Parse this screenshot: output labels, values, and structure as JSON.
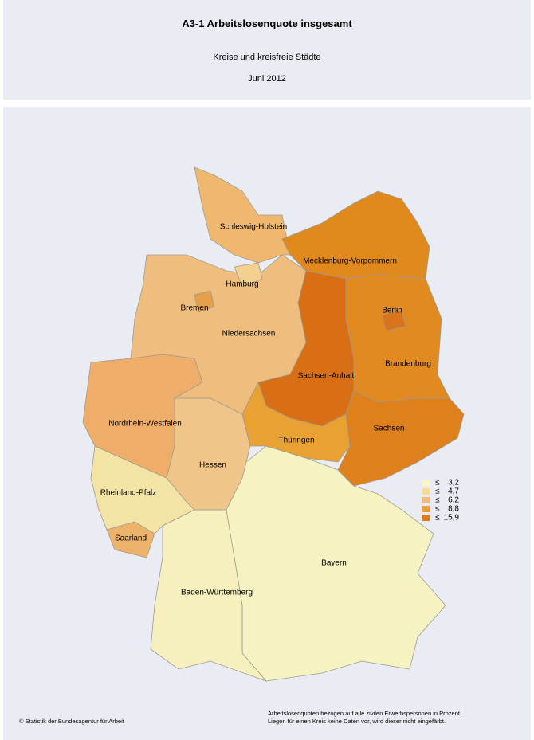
{
  "header": {
    "title": "A3-1 Arbeitslosenquote insgesamt",
    "subtitle": "Kreise und kreisfreie Städte",
    "date": "Juni 2012"
  },
  "map": {
    "states": [
      {
        "label": "Bayern",
        "color": "#f6f3c2"
      },
      {
        "label": "Baden-Württemberg",
        "color": "#f5f0bd"
      },
      {
        "label": "Saarland",
        "color": "#eeb36a"
      },
      {
        "label": "Rheinland-Pfalz",
        "color": "#f3e3a4"
      },
      {
        "label": "Hessen",
        "color": "#f0c58a"
      },
      {
        "label": "Nordrhein-Westfalen",
        "color": "#eeae6a"
      },
      {
        "label": "Niedersachsen",
        "color": "#efbe7e"
      },
      {
        "label": "Schleswig-Holstein",
        "color": "#f0b86f"
      },
      {
        "label": "Mecklenburg-Vorpommern",
        "color": "#e08a1e"
      },
      {
        "label": "Brandenburg",
        "color": "#e18a20"
      },
      {
        "label": "Sachsen-Anhalt",
        "color": "#d96f14"
      },
      {
        "label": "Thüringen",
        "color": "#e9a232"
      },
      {
        "label": "Sachsen",
        "color": "#de801c"
      },
      {
        "label": "Hamburg",
        "color": "#f3d08e"
      },
      {
        "label": "Bremen",
        "color": "#e5a04a"
      },
      {
        "label": "Berlin",
        "color": "#d9741a"
      }
    ],
    "legend": {
      "symbol": "≤",
      "classes": [
        {
          "value": 3.2,
          "label": "3,2",
          "color": "#f7f6c4"
        },
        {
          "value": 4.7,
          "label": "4,7",
          "color": "#f4dd98"
        },
        {
          "value": 6.2,
          "label": "6,2",
          "color": "#f0bb7e"
        },
        {
          "value": 8.8,
          "label": "8,8",
          "color": "#eba23a"
        },
        {
          "value": 15.9,
          "label": "15,9",
          "color": "#de7c1c"
        }
      ]
    }
  },
  "footer": {
    "copyright": "© Statistik der Bundesagentur für Arbeit",
    "note": [
      "Arbeitslosenquoten bezogen auf alle zivilen Erwerbspersonen in Prozent.",
      "Liegen für einen Kreis keine Daten vor, wird dieser nicht eingefärbt."
    ]
  }
}
